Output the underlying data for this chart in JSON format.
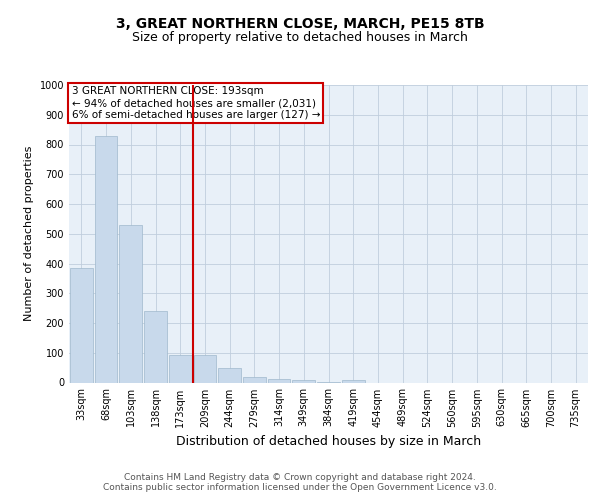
{
  "title": "3, GREAT NORTHERN CLOSE, MARCH, PE15 8TB",
  "subtitle": "Size of property relative to detached houses in March",
  "xlabel": "Distribution of detached houses by size in March",
  "ylabel": "Number of detached properties",
  "categories": [
    "33sqm",
    "68sqm",
    "103sqm",
    "138sqm",
    "173sqm",
    "209sqm",
    "244sqm",
    "279sqm",
    "314sqm",
    "349sqm",
    "384sqm",
    "419sqm",
    "454sqm",
    "489sqm",
    "524sqm",
    "560sqm",
    "595sqm",
    "630sqm",
    "665sqm",
    "700sqm",
    "735sqm"
  ],
  "values": [
    385,
    830,
    530,
    240,
    93,
    93,
    50,
    18,
    13,
    8,
    1,
    10,
    0,
    0,
    0,
    0,
    0,
    0,
    0,
    0,
    0
  ],
  "bar_color": "#c8d9eb",
  "bar_edge_color": "#a0b8cc",
  "grid_color": "#c0cedd",
  "background_color": "#e8f0f8",
  "vline_x": 4.5,
  "vline_color": "#cc0000",
  "annotation_text": "3 GREAT NORTHERN CLOSE: 193sqm\n← 94% of detached houses are smaller (2,031)\n6% of semi-detached houses are larger (127) →",
  "annotation_box_color": "#ffffff",
  "annotation_box_edge_color": "#cc0000",
  "ylim": [
    0,
    1000
  ],
  "yticks": [
    0,
    100,
    200,
    300,
    400,
    500,
    600,
    700,
    800,
    900,
    1000
  ],
  "footer": "Contains HM Land Registry data © Crown copyright and database right 2024.\nContains public sector information licensed under the Open Government Licence v3.0.",
  "title_fontsize": 10,
  "subtitle_fontsize": 9,
  "xlabel_fontsize": 9,
  "ylabel_fontsize": 8,
  "tick_fontsize": 7,
  "annotation_fontsize": 7.5,
  "footer_fontsize": 6.5
}
